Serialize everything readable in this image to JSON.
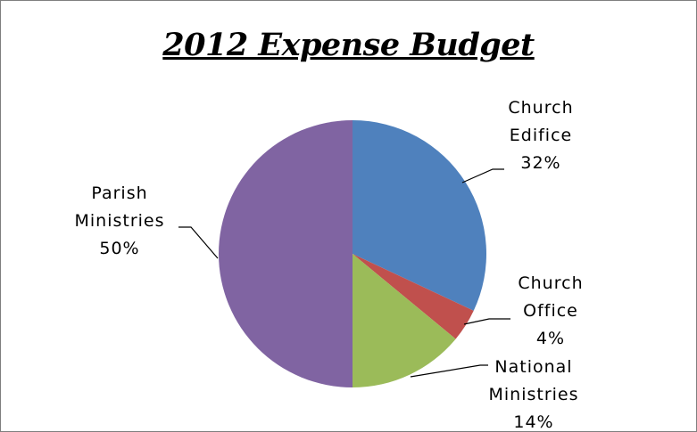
{
  "chart_data": {
    "type": "pie",
    "title": "2012 Expense Budget",
    "slices": [
      {
        "label_lines": [
          "Church",
          "Edifice"
        ],
        "pct_label": "32%",
        "value": 32,
        "color": "#4F81BD"
      },
      {
        "label_lines": [
          "Church",
          "Office"
        ],
        "pct_label": "4%",
        "value": 4,
        "color": "#C0504D"
      },
      {
        "label_lines": [
          "National",
          "Ministries"
        ],
        "pct_label": "14%",
        "value": 14,
        "color": "#9BBB59"
      },
      {
        "label_lines": [
          "Parish",
          "Ministries"
        ],
        "pct_label": "50%",
        "value": 50,
        "color": "#8064A2"
      }
    ],
    "legend": "none"
  }
}
